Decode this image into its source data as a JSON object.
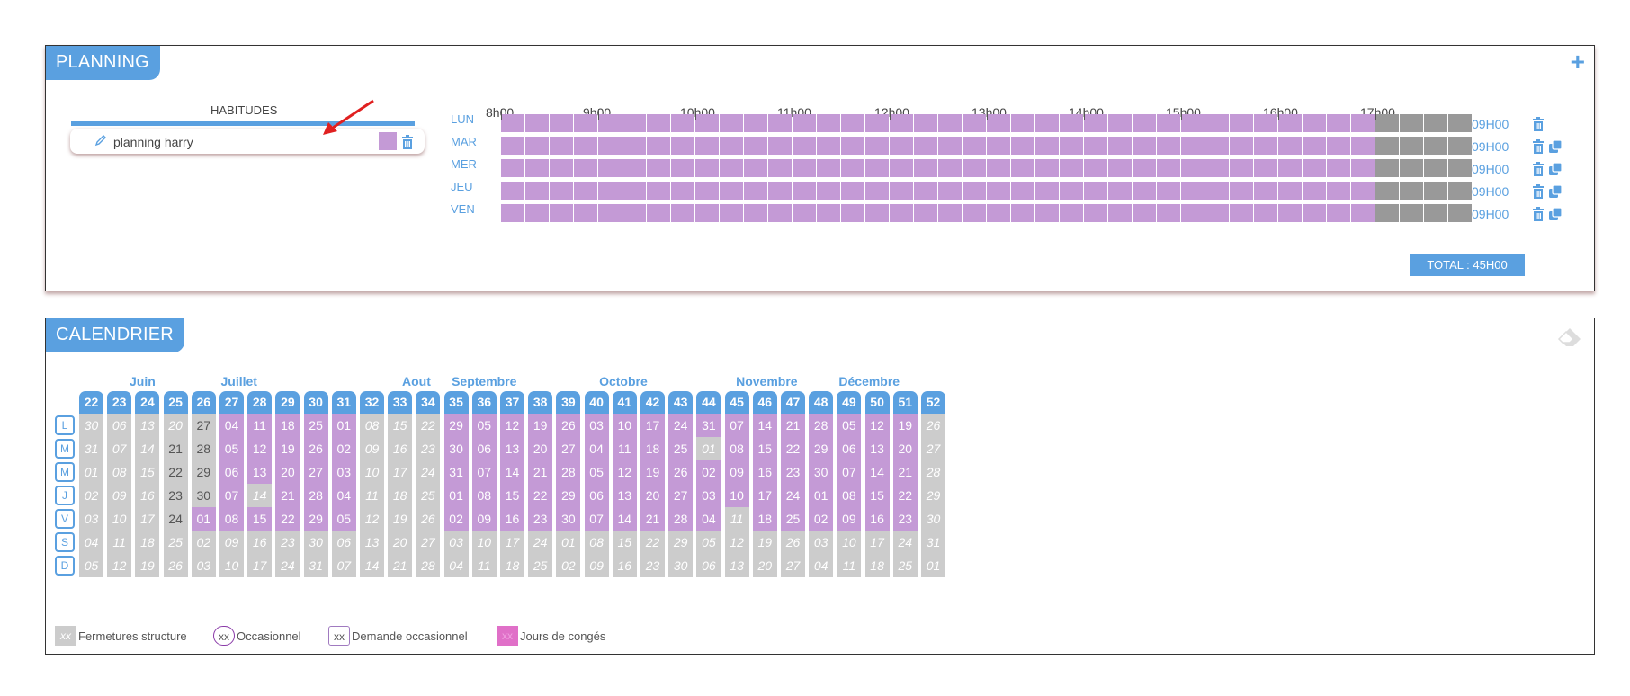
{
  "planning": {
    "title": "PLANNING",
    "add_icon": "plus-icon",
    "habits_title": "HABITUDES",
    "habit": {
      "name": "planning harry",
      "color": "#c49ad6"
    },
    "hours": [
      "8h00",
      "9h00",
      "10h00",
      "11h00",
      "12h00",
      "13h00",
      "14h00",
      "15h00",
      "16h00",
      "17h00"
    ],
    "days": [
      {
        "label": "LUN",
        "duration": "09H00",
        "copy": false
      },
      {
        "label": "MAR",
        "duration": "09H00",
        "copy": true
      },
      {
        "label": "MER",
        "duration": "09H00",
        "copy": true
      },
      {
        "label": "JEU",
        "duration": "09H00",
        "copy": true
      },
      {
        "label": "VEN",
        "duration": "09H00",
        "copy": true
      }
    ],
    "total": "TOTAL : 45H00"
  },
  "calendar": {
    "title": "CALENDRIER",
    "months": [
      {
        "label": "Juin",
        "week": 22
      },
      {
        "label": "Juillet",
        "week": 27
      },
      {
        "label": "Aout",
        "week": 32
      },
      {
        "label": "Septembre",
        "week": 35
      },
      {
        "label": "Octobre",
        "week": 40
      },
      {
        "label": "Novembre",
        "week": 45
      },
      {
        "label": "Décembre",
        "week": 49
      }
    ],
    "weeks": [
      "22",
      "23",
      "24",
      "25",
      "26",
      "27",
      "28",
      "29",
      "30",
      "31",
      "32",
      "33",
      "34",
      "35",
      "36",
      "37",
      "38",
      "39",
      "40",
      "41",
      "42",
      "43",
      "44",
      "45",
      "46",
      "47",
      "48",
      "49",
      "50",
      "51",
      "52"
    ],
    "day_labels": [
      "L",
      "M",
      "M",
      "J",
      "V",
      "S",
      "D"
    ],
    "days": [
      [
        "30",
        "06",
        "13",
        "20",
        "27",
        "04",
        "11",
        "18",
        "25",
        "01",
        "08",
        "15",
        "22",
        "29",
        "05",
        "12",
        "19",
        "26",
        "03",
        "10",
        "17",
        "24",
        "31",
        "07",
        "14",
        "21",
        "28",
        "05",
        "12",
        "19",
        "26"
      ],
      [
        "31",
        "07",
        "14",
        "21",
        "28",
        "05",
        "12",
        "19",
        "26",
        "02",
        "09",
        "16",
        "23",
        "30",
        "06",
        "13",
        "20",
        "27",
        "04",
        "11",
        "18",
        "25",
        "01",
        "08",
        "15",
        "22",
        "29",
        "06",
        "13",
        "20",
        "27"
      ],
      [
        "01",
        "08",
        "15",
        "22",
        "29",
        "06",
        "13",
        "20",
        "27",
        "03",
        "10",
        "17",
        "24",
        "31",
        "07",
        "14",
        "21",
        "28",
        "05",
        "12",
        "19",
        "26",
        "02",
        "09",
        "16",
        "23",
        "30",
        "07",
        "14",
        "21",
        "28"
      ],
      [
        "02",
        "09",
        "16",
        "23",
        "30",
        "07",
        "14",
        "21",
        "28",
        "04",
        "11",
        "18",
        "25",
        "01",
        "08",
        "15",
        "22",
        "29",
        "06",
        "13",
        "20",
        "27",
        "03",
        "10",
        "17",
        "24",
        "01",
        "08",
        "15",
        "22",
        "29"
      ],
      [
        "03",
        "10",
        "17",
        "24",
        "01",
        "08",
        "15",
        "22",
        "29",
        "05",
        "12",
        "19",
        "26",
        "02",
        "09",
        "16",
        "23",
        "30",
        "07",
        "14",
        "21",
        "28",
        "04",
        "11",
        "18",
        "25",
        "02",
        "09",
        "16",
        "23",
        "30"
      ],
      [
        "04",
        "11",
        "18",
        "25",
        "02",
        "09",
        "16",
        "23",
        "30",
        "06",
        "13",
        "20",
        "27",
        "03",
        "10",
        "17",
        "24",
        "01",
        "08",
        "15",
        "22",
        "29",
        "05",
        "12",
        "19",
        "26",
        "03",
        "10",
        "17",
        "24",
        "31"
      ],
      [
        "05",
        "12",
        "19",
        "26",
        "03",
        "10",
        "17",
        "24",
        "31",
        "07",
        "14",
        "21",
        "28",
        "04",
        "11",
        "18",
        "25",
        "02",
        "09",
        "16",
        "23",
        "30",
        "06",
        "13",
        "20",
        "27",
        "04",
        "11",
        "18",
        "25",
        "01"
      ]
    ],
    "legend": [
      {
        "sample": "xx",
        "label": "Fermetures structure"
      },
      {
        "sample": "xx",
        "label": "Occasionnel"
      },
      {
        "sample": "xx",
        "label": "Demande occasionnel"
      },
      {
        "sample": "xx",
        "label": "Jours de congés"
      }
    ]
  }
}
